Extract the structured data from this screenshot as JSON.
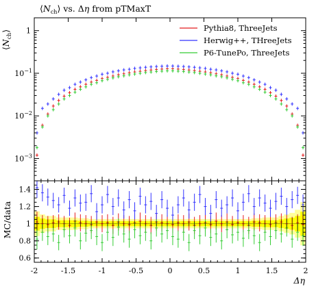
{
  "chart_data": {
    "type": "scatter",
    "title": "⟨N_ch⟩ vs. Δη from pTMaxT",
    "title_parts": [
      "⟨",
      "N",
      "ch",
      "⟩ vs. Δ",
      "η",
      " from pTMaxT"
    ],
    "ylabel": "⟨N_ch⟩",
    "ylabel_parts": [
      "⟨",
      "N",
      "ch",
      "⟩"
    ],
    "xlabel": "Δη",
    "ratio_ylabel": "MC/data",
    "xlim": [
      -2,
      2
    ],
    "ylim_log": [
      0.0003,
      2
    ],
    "ylim_ratio": [
      0.55,
      1.5
    ],
    "x_ticks": [
      "-2",
      "-1.5",
      "-1",
      "-0.5",
      "0",
      "0.5",
      "1",
      "1.5",
      "2"
    ],
    "y_ticks_main": [
      {
        "value": 1,
        "label": "1"
      },
      {
        "value": 0.1,
        "label": "10",
        "exp": "−1"
      },
      {
        "value": 0.01,
        "label": "10",
        "exp": "−2"
      },
      {
        "value": 0.001,
        "label": "10",
        "exp": "−3"
      }
    ],
    "y_ticks_ratio": [
      "0.6",
      "0.8",
      "1",
      "1.2",
      "1.4"
    ],
    "legend_position": "top-right",
    "colors": {
      "data": "#000000",
      "band_inner": "#ffff00",
      "band_outer": "#ffff99",
      "ref_line": "#a0a000"
    },
    "series": [
      {
        "name": "Pythia8, ThreeJets",
        "color": "#e41a1c",
        "x": [
          -1.96,
          -1.88,
          -1.8,
          -1.72,
          -1.64,
          -1.56,
          -1.48,
          -1.4,
          -1.32,
          -1.24,
          -1.16,
          -1.08,
          -1.0,
          -0.92,
          -0.84,
          -0.76,
          -0.68,
          -0.6,
          -0.52,
          -0.44,
          -0.36,
          -0.28,
          -0.2,
          -0.12,
          -0.04,
          0.04,
          0.12,
          0.2,
          0.28,
          0.36,
          0.44,
          0.52,
          0.6,
          0.68,
          0.76,
          0.84,
          0.92,
          1.0,
          1.08,
          1.16,
          1.24,
          1.32,
          1.4,
          1.48,
          1.56,
          1.64,
          1.72,
          1.8,
          1.88,
          1.96
        ],
        "main": [
          0.0012,
          0.006,
          0.011,
          0.017,
          0.023,
          0.029,
          0.035,
          0.042,
          0.048,
          0.055,
          0.062,
          0.068,
          0.075,
          0.08,
          0.086,
          0.092,
          0.097,
          0.102,
          0.107,
          0.111,
          0.115,
          0.119,
          0.122,
          0.125,
          0.127,
          0.127,
          0.125,
          0.122,
          0.119,
          0.115,
          0.111,
          0.107,
          0.102,
          0.097,
          0.092,
          0.086,
          0.08,
          0.075,
          0.068,
          0.062,
          0.055,
          0.048,
          0.042,
          0.035,
          0.029,
          0.023,
          0.017,
          0.011,
          0.006,
          0.0012
        ],
        "ratio": [
          1.02,
          1.0,
          0.99,
          1.01,
          1.02,
          1.0,
          0.98,
          1.03,
          1.01,
          1.0,
          0.99,
          1.02,
          1.0,
          1.01,
          0.98,
          1.02,
          1.0,
          0.99,
          1.01,
          1.03,
          1.0,
          0.98,
          1.02,
          1.01,
          1.0,
          0.99,
          1.01,
          1.0,
          1.02,
          0.98,
          1.0,
          1.01,
          0.99,
          1.03,
          1.0,
          1.02,
          0.99,
          1.01,
          1.0,
          0.98,
          1.02,
          1.01,
          1.0,
          0.99,
          1.01,
          1.02,
          1.0,
          0.98,
          1.01,
          0.99
        ]
      },
      {
        "name": "Herwig++, THreeJets",
        "color": "#3333ff",
        "x": [
          -1.96,
          -1.88,
          -1.8,
          -1.72,
          -1.64,
          -1.56,
          -1.48,
          -1.4,
          -1.32,
          -1.24,
          -1.16,
          -1.08,
          -1.0,
          -0.92,
          -0.84,
          -0.76,
          -0.68,
          -0.6,
          -0.52,
          -0.44,
          -0.36,
          -0.28,
          -0.2,
          -0.12,
          -0.04,
          0.04,
          0.12,
          0.2,
          0.28,
          0.36,
          0.44,
          0.52,
          0.6,
          0.68,
          0.76,
          0.84,
          0.92,
          1.0,
          1.08,
          1.16,
          1.24,
          1.32,
          1.4,
          1.48,
          1.56,
          1.64,
          1.72,
          1.8,
          1.88,
          1.96
        ],
        "main": [
          0.004,
          0.015,
          0.019,
          0.025,
          0.032,
          0.04,
          0.046,
          0.055,
          0.062,
          0.07,
          0.079,
          0.086,
          0.095,
          0.1,
          0.108,
          0.114,
          0.12,
          0.124,
          0.13,
          0.134,
          0.138,
          0.141,
          0.144,
          0.146,
          0.148,
          0.148,
          0.146,
          0.144,
          0.141,
          0.138,
          0.134,
          0.13,
          0.124,
          0.12,
          0.114,
          0.108,
          0.1,
          0.095,
          0.086,
          0.079,
          0.07,
          0.062,
          0.055,
          0.046,
          0.04,
          0.032,
          0.025,
          0.019,
          0.015,
          0.004
        ],
        "ratio": [
          1.42,
          1.36,
          1.31,
          1.27,
          1.22,
          1.33,
          1.18,
          1.3,
          1.24,
          1.25,
          1.35,
          1.14,
          1.22,
          1.34,
          1.2,
          1.3,
          1.16,
          1.28,
          1.15,
          1.32,
          1.22,
          1.26,
          1.12,
          1.28,
          1.18,
          1.1,
          1.22,
          1.3,
          1.16,
          1.25,
          1.34,
          1.2,
          1.12,
          1.28,
          1.18,
          1.22,
          1.3,
          1.15,
          1.25,
          1.35,
          1.2,
          1.3,
          1.24,
          1.18,
          1.26,
          1.32,
          1.2,
          1.28,
          1.33,
          1.22
        ]
      },
      {
        "name": "P6-TunePo, ThreeJets",
        "color": "#33cc33",
        "x": [
          -1.96,
          -1.88,
          -1.8,
          -1.72,
          -1.64,
          -1.56,
          -1.48,
          -1.4,
          -1.32,
          -1.24,
          -1.16,
          -1.08,
          -1.0,
          -0.92,
          -0.84,
          -0.76,
          -0.68,
          -0.6,
          -0.52,
          -0.44,
          -0.36,
          -0.28,
          -0.2,
          -0.12,
          -0.04,
          0.04,
          0.12,
          0.2,
          0.28,
          0.36,
          0.44,
          0.52,
          0.6,
          0.68,
          0.76,
          0.84,
          0.92,
          1.0,
          1.08,
          1.16,
          1.24,
          1.32,
          1.4,
          1.48,
          1.56,
          1.64,
          1.72,
          1.8,
          1.88,
          1.96
        ],
        "main": [
          0.0018,
          0.0055,
          0.01,
          0.014,
          0.019,
          0.025,
          0.03,
          0.036,
          0.042,
          0.048,
          0.055,
          0.06,
          0.067,
          0.072,
          0.078,
          0.083,
          0.087,
          0.092,
          0.096,
          0.1,
          0.104,
          0.107,
          0.11,
          0.112,
          0.114,
          0.114,
          0.112,
          0.11,
          0.107,
          0.104,
          0.1,
          0.096,
          0.092,
          0.087,
          0.083,
          0.078,
          0.072,
          0.067,
          0.06,
          0.055,
          0.048,
          0.042,
          0.036,
          0.03,
          0.025,
          0.019,
          0.014,
          0.01,
          0.0055,
          0.0018
        ],
        "ratio": [
          0.82,
          0.9,
          0.85,
          0.88,
          0.78,
          0.93,
          0.86,
          0.95,
          0.8,
          0.89,
          0.92,
          0.85,
          0.78,
          0.9,
          0.84,
          0.96,
          0.88,
          0.82,
          0.93,
          0.86,
          0.9,
          0.8,
          0.95,
          0.88,
          0.92,
          0.85,
          0.82,
          0.9,
          0.78,
          0.92,
          0.86,
          0.95,
          0.84,
          0.88,
          0.8,
          0.93,
          0.87,
          0.9,
          0.83,
          0.92,
          0.86,
          0.78,
          0.9,
          0.85,
          0.92,
          0.88,
          0.95,
          0.82,
          0.9,
          0.86
        ]
      }
    ],
    "data": {
      "x": [
        -1.96,
        -1.88,
        -1.8,
        -1.72,
        -1.64,
        -1.56,
        -1.48,
        -1.4,
        -1.32,
        -1.24,
        -1.16,
        -1.08,
        -1.0,
        -0.92,
        -0.84,
        -0.76,
        -0.68,
        -0.6,
        -0.52,
        -0.44,
        -0.36,
        -0.28,
        -0.2,
        -0.12,
        -0.04,
        0.04,
        0.12,
        0.2,
        0.28,
        0.36,
        0.44,
        0.52,
        0.6,
        0.68,
        0.76,
        0.84,
        0.92,
        1.0,
        1.08,
        1.16,
        1.24,
        1.32,
        1.4,
        1.48,
        1.56,
        1.64,
        1.72,
        1.8,
        1.88,
        1.96
      ],
      "ratio_band": [
        0.08,
        0.06,
        0.05,
        0.05,
        0.04,
        0.04,
        0.04,
        0.04,
        0.035,
        0.035,
        0.03,
        0.03,
        0.03,
        0.03,
        0.03,
        0.03,
        0.03,
        0.03,
        0.03,
        0.03,
        0.03,
        0.03,
        0.03,
        0.03,
        0.03,
        0.03,
        0.03,
        0.03,
        0.03,
        0.03,
        0.03,
        0.03,
        0.03,
        0.03,
        0.03,
        0.03,
        0.03,
        0.03,
        0.03,
        0.03,
        0.035,
        0.035,
        0.04,
        0.04,
        0.04,
        0.05,
        0.06,
        0.07,
        0.09,
        0.14
      ],
      "ratio_err": [
        0.12,
        0.1,
        0.1,
        0.09,
        0.09,
        0.09,
        0.09,
        0.1,
        0.1,
        0.1,
        0.1,
        0.1,
        0.1,
        0.1,
        0.1,
        0.1,
        0.1,
        0.1,
        0.1,
        0.1,
        0.1,
        0.1,
        0.1,
        0.1,
        0.1,
        0.1,
        0.1,
        0.1,
        0.1,
        0.1,
        0.1,
        0.1,
        0.1,
        0.1,
        0.1,
        0.1,
        0.1,
        0.1,
        0.1,
        0.1,
        0.1,
        0.1,
        0.1,
        0.1,
        0.1,
        0.1,
        0.1,
        0.1,
        0.1,
        0.12
      ]
    }
  }
}
